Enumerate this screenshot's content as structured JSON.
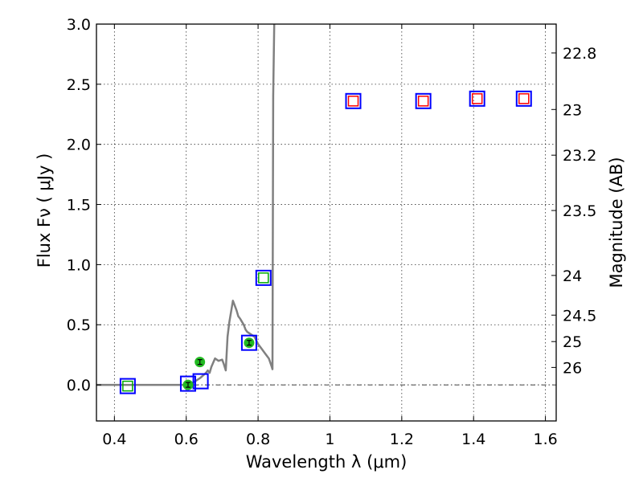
{
  "chart_data": {
    "type": "scatter",
    "xlabel": "Wavelength  λ (μm)",
    "ylabel": "Flux  Fν  ( μJy )",
    "y2label": "Magnitude (AB)",
    "xlim": [
      0.35,
      1.63
    ],
    "ylim": [
      -0.3,
      3.0
    ],
    "grid": true,
    "x_ticks": [
      "0.4",
      "0.6",
      "0.8",
      "1",
      "1.2",
      "1.4",
      "1.6"
    ],
    "x_tick_values": [
      0.4,
      0.6,
      0.8,
      1.0,
      1.2,
      1.4,
      1.6
    ],
    "y_ticks": [
      "0.0",
      "0.5",
      "1.0",
      "1.5",
      "2.0",
      "2.5",
      "3.0"
    ],
    "y_tick_values": [
      0.0,
      0.5,
      1.0,
      1.5,
      2.0,
      2.5,
      3.0
    ],
    "mag_ticks": [
      {
        "label": "22.8",
        "flux": 2.76
      },
      {
        "label": "23",
        "flux": 2.29
      },
      {
        "label": "23.2",
        "flux": 1.91
      },
      {
        "label": "23.5",
        "flux": 1.45
      },
      {
        "label": "24",
        "flux": 0.91
      },
      {
        "label": "24.5",
        "flux": 0.58
      },
      {
        "label": "25",
        "flux": 0.36
      },
      {
        "label": "26",
        "flux": 0.145
      }
    ],
    "colors": {
      "model": "#808080",
      "model_marker": "#0000ff",
      "observed_red": "#ff0000",
      "observed_green": "#00aa00",
      "detection": "#22bb22"
    },
    "series": [
      {
        "type": "line",
        "points": [
          [
            0.35,
            0.0
          ],
          [
            0.59,
            0.0
          ],
          [
            0.6,
            0.0
          ],
          [
            0.62,
            0.02
          ],
          [
            0.64,
            0.06
          ],
          [
            0.655,
            0.1
          ],
          [
            0.66,
            0.12
          ],
          [
            0.665,
            0.1
          ],
          [
            0.67,
            0.15
          ],
          [
            0.68,
            0.22
          ],
          [
            0.69,
            0.2
          ],
          [
            0.7,
            0.21
          ],
          [
            0.705,
            0.17
          ],
          [
            0.71,
            0.12
          ],
          [
            0.715,
            0.4
          ],
          [
            0.72,
            0.52
          ],
          [
            0.73,
            0.7
          ],
          [
            0.74,
            0.62
          ],
          [
            0.745,
            0.57
          ],
          [
            0.75,
            0.55
          ],
          [
            0.76,
            0.5
          ],
          [
            0.765,
            0.46
          ],
          [
            0.77,
            0.44
          ],
          [
            0.78,
            0.42
          ],
          [
            0.79,
            0.4
          ],
          [
            0.8,
            0.34
          ],
          [
            0.81,
            0.3
          ],
          [
            0.82,
            0.26
          ],
          [
            0.83,
            0.22
          ],
          [
            0.838,
            0.15
          ],
          [
            0.84,
            0.13
          ],
          [
            0.842,
            2.4
          ],
          [
            0.845,
            3.0
          ]
        ]
      },
      {
        "type": "scatter",
        "marker": "blue-square",
        "points": [
          [
            0.437,
            -0.01
          ],
          [
            0.605,
            0.01
          ],
          [
            0.64,
            0.03
          ],
          [
            0.775,
            0.35
          ],
          [
            0.815,
            0.89
          ],
          [
            1.065,
            2.36
          ],
          [
            1.26,
            2.36
          ],
          [
            1.41,
            2.38
          ],
          [
            1.54,
            2.38
          ]
        ]
      },
      {
        "type": "scatter",
        "marker": "open-square",
        "points": [
          {
            "x": 0.437,
            "y": -0.01,
            "color": "green"
          },
          {
            "x": 0.815,
            "y": 0.89,
            "color": "green"
          },
          {
            "x": 1.065,
            "y": 2.36,
            "color": "red"
          },
          {
            "x": 1.26,
            "y": 2.36,
            "color": "red"
          },
          {
            "x": 1.41,
            "y": 2.38,
            "color": "red"
          },
          {
            "x": 1.54,
            "y": 2.38,
            "color": "red"
          }
        ]
      },
      {
        "type": "scatter",
        "marker": "filled-circle",
        "points": [
          {
            "x": 0.605,
            "y": 0.0,
            "err": 0.02
          },
          {
            "x": 0.638,
            "y": 0.19,
            "err": 0.02
          },
          {
            "x": 0.775,
            "y": 0.35,
            "err": 0.02
          }
        ]
      }
    ]
  }
}
